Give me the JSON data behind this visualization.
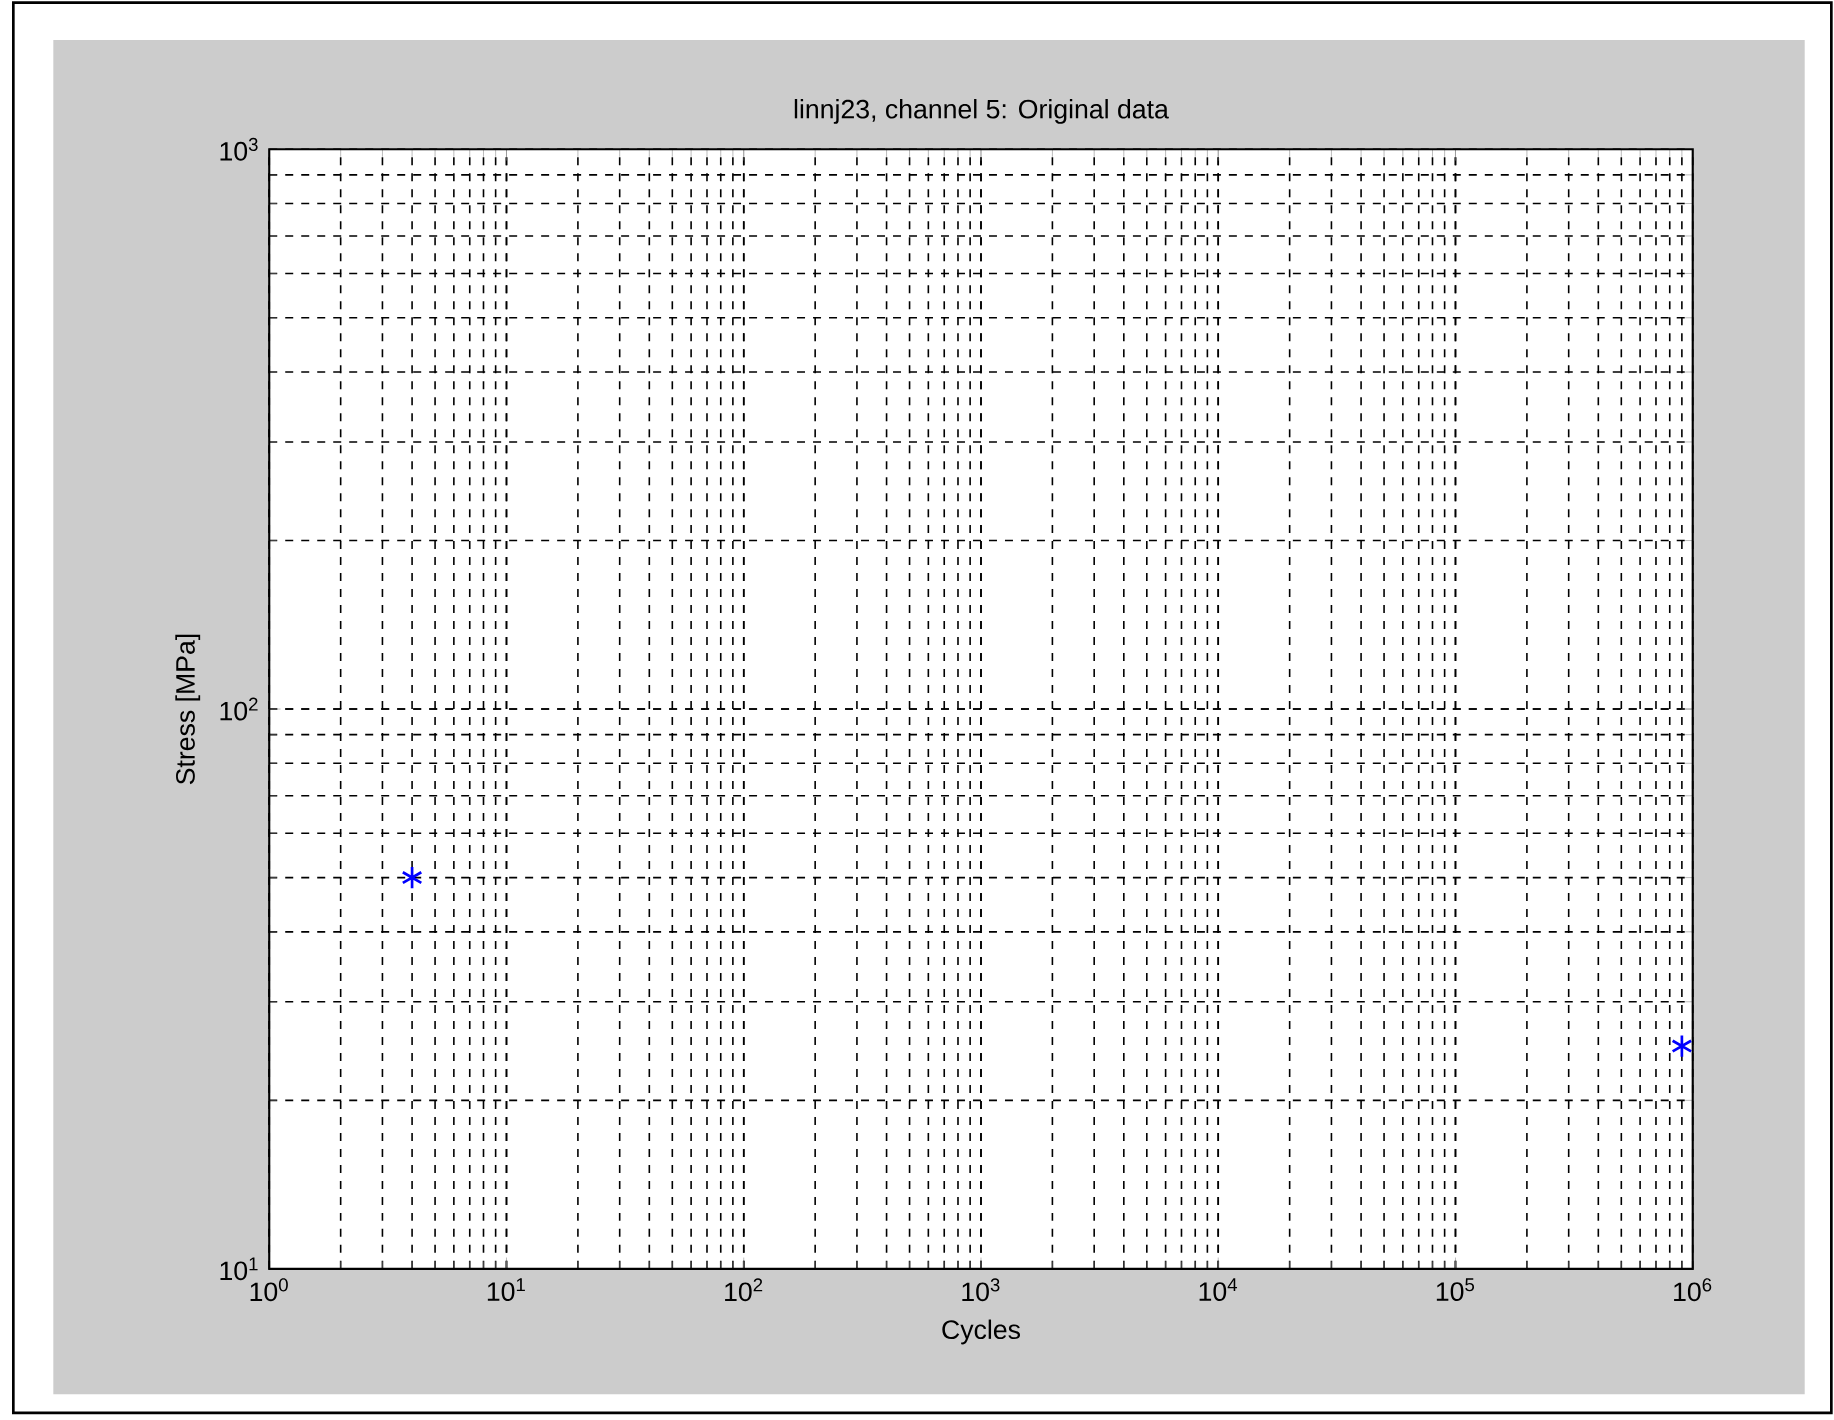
{
  "chart_data": {
    "type": "scatter",
    "title": "linnj23, channel 5: Original data",
    "xlabel": "Cycles",
    "ylabel": "Stress [MPa]",
    "x": [
      4,
      900000
    ],
    "series": [
      {
        "color": "#0000ff",
        "values": [
          50,
          25
        ]
      }
    ],
    "xlim": [
      1,
      1000000
    ],
    "ylim": [
      10,
      1000
    ],
    "xticks": [
      {
        "value": 1,
        "label": "10$^{0}$"
      },
      {
        "value": 10,
        "label": "10$^{1}$"
      },
      {
        "value": 100,
        "label": "10$^{2}$"
      },
      {
        "value": 1000,
        "label": "10$^{3}$"
      },
      {
        "value": 10000,
        "label": "10$^{4}$"
      },
      {
        "value": 100000,
        "label": "10$^{5}$"
      },
      {
        "value": 1000000,
        "label": "10$^{6}$"
      }
    ],
    "yticks": [
      {
        "value": 10,
        "label": "10$^{1}$"
      },
      {
        "value": 100,
        "label": "10$^{2}$"
      },
      {
        "value": 1000,
        "label": "10$^{3}$"
      }
    ],
    "log": "xy",
    "grid": true,
    "marker": "cross"
  }
}
